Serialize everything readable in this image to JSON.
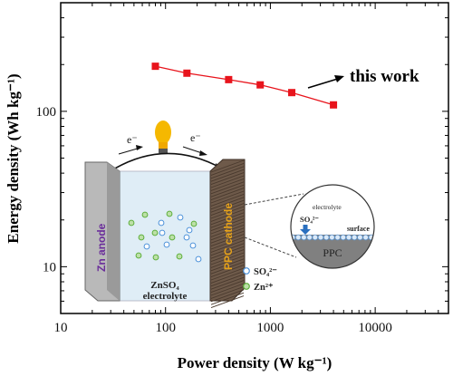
{
  "chart_data": {
    "type": "line",
    "xlabel": "Power density (W kg⁻¹)",
    "ylabel": "Energy density (Wh kg⁻¹)",
    "x_scale": "log",
    "y_scale": "log",
    "xlim": [
      10,
      50000
    ],
    "ylim": [
      5,
      500
    ],
    "x_tick_labels": [
      "10",
      "100",
      "1000",
      "10000"
    ],
    "y_tick_labels": [
      "10",
      "100"
    ],
    "grid": false,
    "series": [
      {
        "color": "#e8141c",
        "marker": "square",
        "x": [
          80,
          160,
          400,
          800,
          1600,
          4000
        ],
        "y": [
          195,
          176,
          160,
          148,
          132,
          110
        ]
      }
    ],
    "annotations": [
      {
        "text": "this work",
        "arrow_to_series": true
      }
    ]
  },
  "inset": {
    "electron_left": "e⁻",
    "electron_right": "e⁻",
    "anode_label": "Zn anode",
    "cathode_label": "PPC cathode",
    "electrolyte_formula": "ZnSO₄",
    "electrolyte_word": "electrolyte",
    "legend_sulfate": "SO₄²⁻",
    "legend_zinc": "Zn²⁺",
    "zoom_electrolyte": "electrolyte",
    "zoom_sulfate": "SO₄²⁻",
    "zoom_surface": "surface",
    "zoom_material": "PPC",
    "colors": {
      "anode_text": "#6a2d9a",
      "cathode_text": "#e6a21a",
      "sulfate": "#4a90d9",
      "zinc": "#5cae3a",
      "bulb": "#f5b800"
    }
  }
}
